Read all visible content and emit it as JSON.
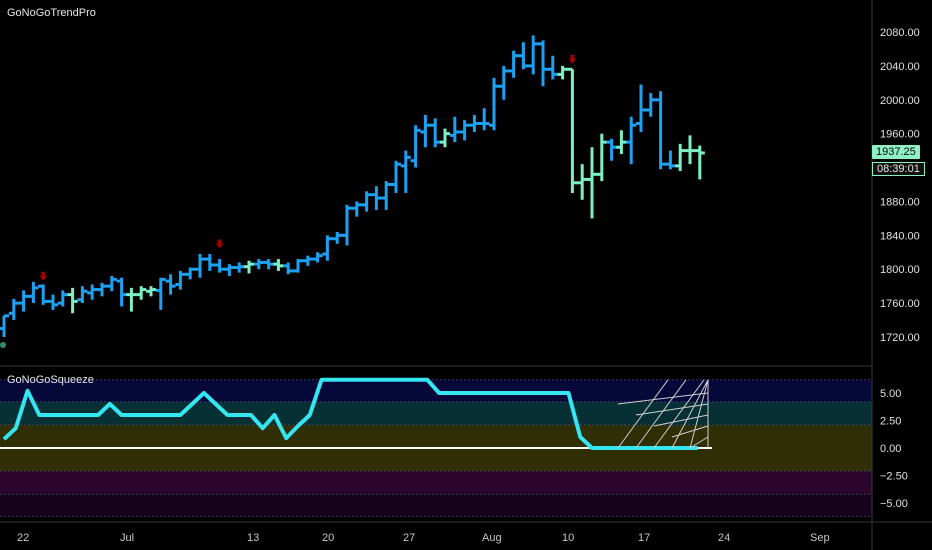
{
  "price_pane": {
    "title": "GoNoGoTrendPro",
    "last_price_label": "1937.25",
    "countdown_label": "08:39:01",
    "y_ticks": [
      "2080.00",
      "2040.00",
      "2000.00",
      "1960.00",
      "1920.00",
      "1880.00",
      "1840.00",
      "1800.00",
      "1760.00",
      "1720.00"
    ]
  },
  "squeeze_pane": {
    "title": "GoNoGoSqueeze",
    "y_ticks": [
      "5.00",
      "2.50",
      "0.00",
      "−2.50",
      "−5.00"
    ]
  },
  "x_ticks": [
    "22",
    "Jul",
    "13",
    "20",
    "27",
    "Aug",
    "10",
    "17",
    "24",
    "Sep"
  ],
  "colors": {
    "go": "#1da1f2",
    "strong_go": "#00bfff",
    "weak_go": "#7cf0c4",
    "nogo": "#a00000",
    "squeeze_line": "#33e6f0",
    "zero_line": "#ffffff"
  },
  "chart_data": [
    {
      "type": "ohlc",
      "title": "GoNoGoTrendPro",
      "ylim": [
        1700,
        2100
      ],
      "bars": [
        {
          "o": 1730,
          "h": 1745,
          "l": 1720,
          "c": 1745,
          "color": "go"
        },
        {
          "o": 1748,
          "h": 1765,
          "l": 1740,
          "c": 1760,
          "color": "go"
        },
        {
          "o": 1760,
          "h": 1775,
          "l": 1750,
          "c": 1768,
          "color": "go"
        },
        {
          "o": 1768,
          "h": 1785,
          "l": 1760,
          "c": 1778,
          "color": "go"
        },
        {
          "o": 1780,
          "h": 1782,
          "l": 1758,
          "c": 1762,
          "color": "go"
        },
        {
          "o": 1762,
          "h": 1770,
          "l": 1752,
          "c": 1758,
          "color": "go"
        },
        {
          "o": 1760,
          "h": 1775,
          "l": 1756,
          "c": 1770,
          "color": "go"
        },
        {
          "o": 1770,
          "h": 1778,
          "l": 1748,
          "c": 1762,
          "color": "weak_go"
        },
        {
          "o": 1764,
          "h": 1780,
          "l": 1760,
          "c": 1774,
          "color": "go"
        },
        {
          "o": 1772,
          "h": 1782,
          "l": 1764,
          "c": 1776,
          "color": "go"
        },
        {
          "o": 1776,
          "h": 1784,
          "l": 1768,
          "c": 1780,
          "color": "go"
        },
        {
          "o": 1780,
          "h": 1792,
          "l": 1774,
          "c": 1788,
          "color": "go"
        },
        {
          "o": 1786,
          "h": 1790,
          "l": 1756,
          "c": 1770,
          "color": "go"
        },
        {
          "o": 1770,
          "h": 1778,
          "l": 1750,
          "c": 1770,
          "color": "weak_go"
        },
        {
          "o": 1770,
          "h": 1780,
          "l": 1764,
          "c": 1776,
          "color": "weak_go"
        },
        {
          "o": 1774,
          "h": 1780,
          "l": 1768,
          "c": 1776,
          "color": "weak_go"
        },
        {
          "o": 1775,
          "h": 1790,
          "l": 1752,
          "c": 1788,
          "color": "go"
        },
        {
          "o": 1786,
          "h": 1794,
          "l": 1770,
          "c": 1780,
          "color": "go"
        },
        {
          "o": 1782,
          "h": 1798,
          "l": 1776,
          "c": 1794,
          "color": "go"
        },
        {
          "o": 1794,
          "h": 1802,
          "l": 1788,
          "c": 1800,
          "color": "go"
        },
        {
          "o": 1800,
          "h": 1818,
          "l": 1790,
          "c": 1812,
          "color": "go"
        },
        {
          "o": 1812,
          "h": 1818,
          "l": 1798,
          "c": 1805,
          "color": "go"
        },
        {
          "o": 1805,
          "h": 1812,
          "l": 1796,
          "c": 1800,
          "color": "go"
        },
        {
          "o": 1800,
          "h": 1806,
          "l": 1792,
          "c": 1802,
          "color": "go"
        },
        {
          "o": 1802,
          "h": 1808,
          "l": 1796,
          "c": 1803,
          "color": "go"
        },
        {
          "o": 1803,
          "h": 1810,
          "l": 1795,
          "c": 1806,
          "color": "weak_go"
        },
        {
          "o": 1806,
          "h": 1812,
          "l": 1800,
          "c": 1808,
          "color": "go"
        },
        {
          "o": 1808,
          "h": 1812,
          "l": 1800,
          "c": 1806,
          "color": "go"
        },
        {
          "o": 1806,
          "h": 1812,
          "l": 1798,
          "c": 1804,
          "color": "weak_go"
        },
        {
          "o": 1804,
          "h": 1808,
          "l": 1794,
          "c": 1798,
          "color": "go"
        },
        {
          "o": 1798,
          "h": 1812,
          "l": 1796,
          "c": 1810,
          "color": "go"
        },
        {
          "o": 1810,
          "h": 1816,
          "l": 1804,
          "c": 1812,
          "color": "go"
        },
        {
          "o": 1812,
          "h": 1820,
          "l": 1808,
          "c": 1816,
          "color": "go"
        },
        {
          "o": 1818,
          "h": 1840,
          "l": 1810,
          "c": 1836,
          "color": "go"
        },
        {
          "o": 1836,
          "h": 1844,
          "l": 1830,
          "c": 1840,
          "color": "go"
        },
        {
          "o": 1840,
          "h": 1876,
          "l": 1828,
          "c": 1872,
          "color": "go"
        },
        {
          "o": 1872,
          "h": 1880,
          "l": 1862,
          "c": 1876,
          "color": "go"
        },
        {
          "o": 1876,
          "h": 1892,
          "l": 1868,
          "c": 1888,
          "color": "go"
        },
        {
          "o": 1888,
          "h": 1898,
          "l": 1870,
          "c": 1884,
          "color": "go"
        },
        {
          "o": 1884,
          "h": 1904,
          "l": 1870,
          "c": 1900,
          "color": "go"
        },
        {
          "o": 1900,
          "h": 1928,
          "l": 1890,
          "c": 1924,
          "color": "go"
        },
        {
          "o": 1922,
          "h": 1940,
          "l": 1890,
          "c": 1932,
          "color": "go"
        },
        {
          "o": 1928,
          "h": 1970,
          "l": 1920,
          "c": 1964,
          "color": "go"
        },
        {
          "o": 1962,
          "h": 1982,
          "l": 1944,
          "c": 1970,
          "color": "go"
        },
        {
          "o": 1970,
          "h": 1978,
          "l": 1944,
          "c": 1950,
          "color": "go"
        },
        {
          "o": 1950,
          "h": 1966,
          "l": 1944,
          "c": 1960,
          "color": "weak_go"
        },
        {
          "o": 1958,
          "h": 1980,
          "l": 1950,
          "c": 1962,
          "color": "go"
        },
        {
          "o": 1962,
          "h": 1976,
          "l": 1952,
          "c": 1970,
          "color": "go"
        },
        {
          "o": 1970,
          "h": 1982,
          "l": 1962,
          "c": 1972,
          "color": "go"
        },
        {
          "o": 1972,
          "h": 1990,
          "l": 1964,
          "c": 1972,
          "color": "go"
        },
        {
          "o": 1970,
          "h": 2026,
          "l": 1964,
          "c": 2016,
          "color": "go"
        },
        {
          "o": 2016,
          "h": 2040,
          "l": 2000,
          "c": 2034,
          "color": "go"
        },
        {
          "o": 2034,
          "h": 2058,
          "l": 2026,
          "c": 2052,
          "color": "go"
        },
        {
          "o": 2052,
          "h": 2068,
          "l": 2036,
          "c": 2040,
          "color": "go"
        },
        {
          "o": 2040,
          "h": 2076,
          "l": 2030,
          "c": 2066,
          "color": "go"
        },
        {
          "o": 2066,
          "h": 2070,
          "l": 2016,
          "c": 2036,
          "color": "go"
        },
        {
          "o": 2036,
          "h": 2052,
          "l": 2024,
          "c": 2030,
          "color": "go"
        },
        {
          "o": 2030,
          "h": 2040,
          "l": 2024,
          "c": 2036,
          "color": "weak_go"
        },
        {
          "o": 2036,
          "h": 2036,
          "l": 1890,
          "c": 1902,
          "color": "weak_go"
        },
        {
          "o": 1902,
          "h": 1924,
          "l": 1882,
          "c": 1906,
          "color": "weak_go"
        },
        {
          "o": 1906,
          "h": 1944,
          "l": 1860,
          "c": 1912,
          "color": "weak_go"
        },
        {
          "o": 1912,
          "h": 1960,
          "l": 1904,
          "c": 1950,
          "color": "weak_go"
        },
        {
          "o": 1950,
          "h": 1954,
          "l": 1928,
          "c": 1944,
          "color": "go"
        },
        {
          "o": 1944,
          "h": 1964,
          "l": 1936,
          "c": 1950,
          "color": "weak_go"
        },
        {
          "o": 1950,
          "h": 1980,
          "l": 1924,
          "c": 1970,
          "color": "go"
        },
        {
          "o": 1972,
          "h": 2018,
          "l": 1962,
          "c": 1988,
          "color": "go"
        },
        {
          "o": 1988,
          "h": 2008,
          "l": 1980,
          "c": 2000,
          "color": "go"
        },
        {
          "o": 2000,
          "h": 2010,
          "l": 1918,
          "c": 1924,
          "color": "go"
        },
        {
          "o": 1924,
          "h": 1940,
          "l": 1918,
          "c": 1922,
          "color": "go"
        },
        {
          "o": 1922,
          "h": 1948,
          "l": 1916,
          "c": 1940,
          "color": "weak_go"
        },
        {
          "o": 1940,
          "h": 1958,
          "l": 1924,
          "c": 1940,
          "color": "weak_go"
        },
        {
          "o": 1940,
          "h": 1946,
          "l": 1906,
          "c": 1937.25,
          "color": "weak_go"
        }
      ],
      "nogo_arrows": [
        {
          "bar": 4,
          "y": 1790
        },
        {
          "bar": 22,
          "y": 1828
        },
        {
          "bar": 58,
          "y": 2046
        }
      ],
      "y_ticks": [
        2080,
        2040,
        2000,
        1960,
        1920,
        1880,
        1840,
        1800,
        1760,
        1720
      ],
      "last_price": 1937.25
    },
    {
      "type": "line",
      "title": "GoNoGoSqueeze",
      "ylim": [
        -7.5,
        7.5
      ],
      "bands": [
        {
          "from": 4.2,
          "to": 6.2,
          "color": "#06083a"
        },
        {
          "from": 2.1,
          "to": 4.2,
          "color": "#063033"
        },
        {
          "from": 0,
          "to": 2.1,
          "color": "#2f2e05"
        },
        {
          "from": -2.1,
          "to": 0,
          "color": "#2f2e05"
        },
        {
          "from": -4.2,
          "to": -2.1,
          "color": "#2c052c"
        },
        {
          "from": -6.2,
          "to": -4.2,
          "color": "#14031a"
        }
      ],
      "values": [
        0.8,
        1.8,
        5.2,
        3.0,
        3.0,
        3.0,
        3.0,
        3.0,
        3.0,
        4.0,
        3.0,
        3.0,
        3.0,
        3.0,
        3.0,
        3.0,
        4.0,
        5.0,
        4.0,
        3.0,
        3.0,
        3.0,
        1.8,
        3.0,
        0.9,
        2.0,
        3.0,
        6.2,
        6.2,
        6.2,
        6.2,
        6.2,
        6.2,
        6.2,
        6.2,
        6.2,
        6.2,
        5.0,
        5.0,
        5.0,
        5.0,
        5.0,
        5.0,
        5.0,
        5.0,
        5.0,
        5.0,
        5.0,
        5.0,
        1.0,
        0.0,
        0.0,
        0.0,
        0.0,
        0.0,
        0.0,
        0.0,
        0.0,
        0.0,
        0.0
      ],
      "grid_icon": true,
      "y_ticks": [
        5.0,
        2.5,
        0.0,
        -2.5,
        -5.0
      ]
    }
  ]
}
